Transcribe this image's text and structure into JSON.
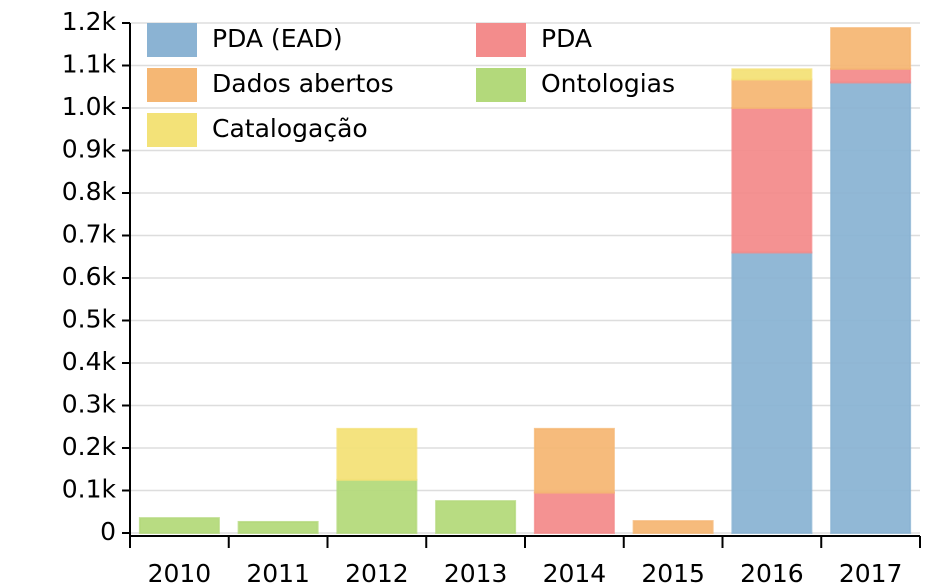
{
  "chart_data": {
    "type": "bar",
    "stacked": true,
    "categories": [
      "2010",
      "2011",
      "2012",
      "2013",
      "2014",
      "2015",
      "2016",
      "2017"
    ],
    "series": [
      {
        "name": "PDA (EAD)",
        "color": "#8fb9da",
        "values": [
          0,
          0,
          0,
          0,
          0,
          0,
          660,
          1060
        ]
      },
      {
        "name": "PDA",
        "color": "#fb9090",
        "values": [
          0,
          0,
          0,
          0,
          95,
          0,
          340,
          32
        ]
      },
      {
        "name": "Dados abertos",
        "color": "#fdbd78",
        "values": [
          0,
          0,
          0,
          0,
          150,
          28,
          67,
          96
        ]
      },
      {
        "name": "Ontologias",
        "color": "#b9e07f",
        "values": [
          35,
          26,
          125,
          75,
          0,
          0,
          0,
          0
        ]
      },
      {
        "name": "Catalogação",
        "color": "#fbe97c",
        "values": [
          0,
          0,
          120,
          0,
          0,
          0,
          24,
          0
        ]
      }
    ],
    "ylim": [
      0,
      1200
    ],
    "yticks": [
      0,
      {
        "value": 100,
        "label": "0.1k"
      },
      {
        "value": 200,
        "label": "0.2k"
      },
      {
        "value": 300,
        "label": "0.3k"
      },
      {
        "value": 400,
        "label": "0.4k"
      },
      {
        "value": 500,
        "label": "0.5k"
      },
      {
        "value": 600,
        "label": "0.6k"
      },
      {
        "value": 700,
        "label": "0.7k"
      },
      {
        "value": 800,
        "label": "0.8k"
      },
      {
        "value": 900,
        "label": "0.9k"
      },
      {
        "value": 1000,
        "label": "1.0k"
      },
      {
        "value": 1100,
        "label": "1.1k"
      },
      {
        "value": 1200,
        "label": "1.2k"
      }
    ],
    "grid": true,
    "legend": "upper left"
  }
}
